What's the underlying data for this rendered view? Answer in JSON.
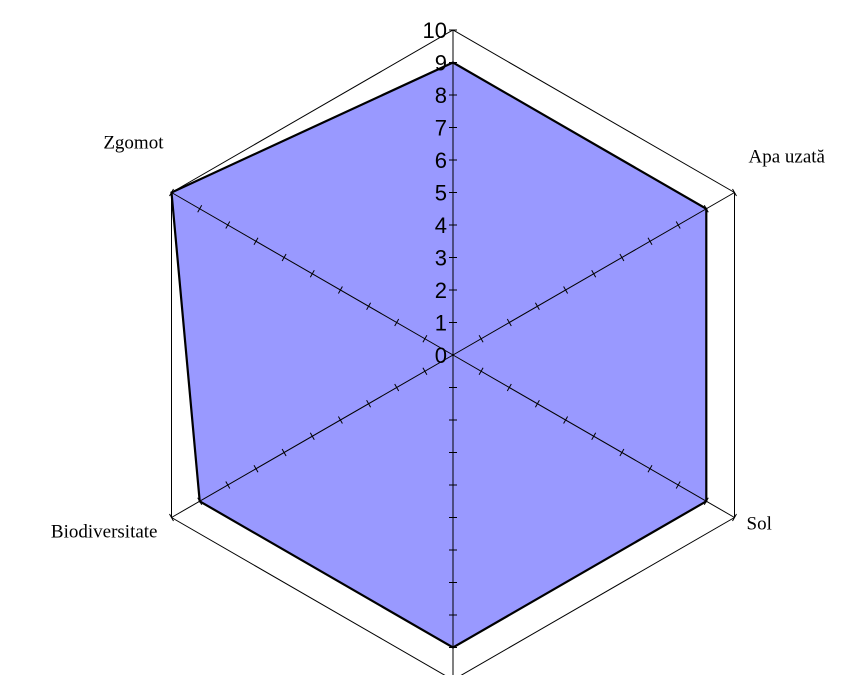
{
  "chart_data": {
    "type": "radar",
    "title": "",
    "categories": [
      "Apa uzată",
      "Sol",
      "",
      "Biodiversitate",
      "Zgomot",
      ""
    ],
    "series": [
      {
        "name": "",
        "values": [
          9,
          9,
          9,
          9,
          10,
          9
        ]
      }
    ],
    "rlim": [
      0,
      10
    ],
    "ticks": [
      0,
      1,
      2,
      3,
      4,
      5,
      6,
      7,
      8,
      9,
      10
    ],
    "grid": true,
    "legend": "none",
    "colors": {
      "fill": "#9999ff",
      "stroke": "#000000",
      "grid": "#000000"
    }
  }
}
